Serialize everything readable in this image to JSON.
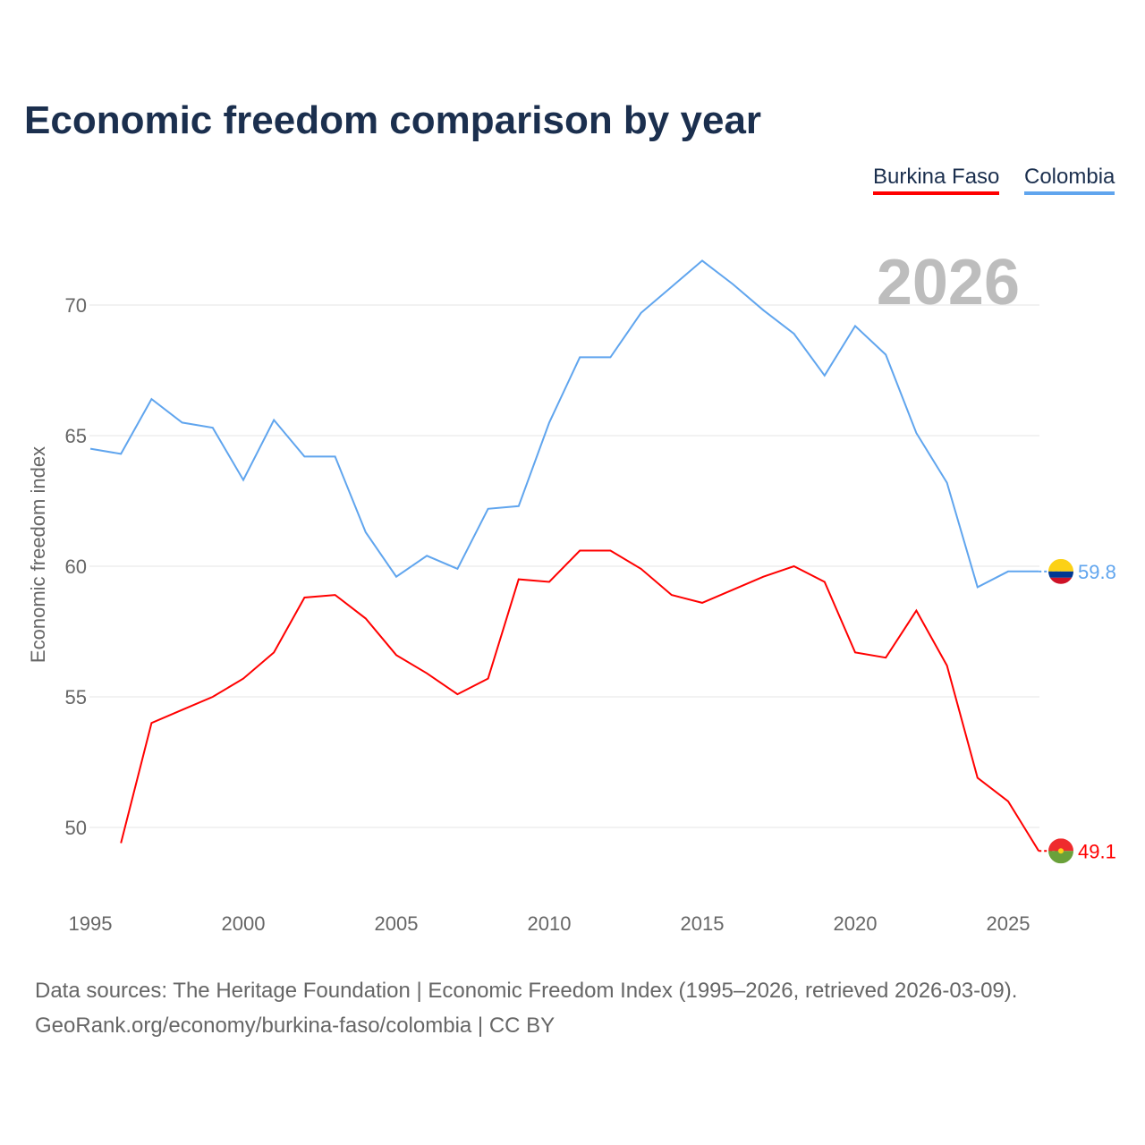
{
  "chart_data": {
    "type": "line",
    "title": "Economic freedom comparison by year",
    "xlabel": "",
    "ylabel": "Economic freedom index",
    "xlim": [
      1995,
      2026
    ],
    "ylim": [
      48,
      72.5
    ],
    "x_ticks": [
      "1995",
      "2000",
      "2005",
      "2010",
      "2015",
      "2020",
      "2025"
    ],
    "y_ticks": [
      "50",
      "55",
      "60",
      "65",
      "70"
    ],
    "grid": true,
    "legend_placement": "top-right",
    "year_label": "2026",
    "series": [
      {
        "name": "Burkina Faso",
        "color": "#ff0000",
        "end_label": "49.1",
        "x": [
          1996,
          1997,
          1998,
          1999,
          2000,
          2001,
          2002,
          2003,
          2004,
          2005,
          2006,
          2007,
          2008,
          2009,
          2010,
          2011,
          2012,
          2013,
          2014,
          2015,
          2016,
          2017,
          2018,
          2019,
          2020,
          2021,
          2022,
          2023,
          2024,
          2025,
          2026
        ],
        "values": [
          49.4,
          54.0,
          54.5,
          55.0,
          55.7,
          56.7,
          58.8,
          58.9,
          58.0,
          56.6,
          55.9,
          55.1,
          55.7,
          59.5,
          59.4,
          60.6,
          60.6,
          59.9,
          58.9,
          58.6,
          59.1,
          59.6,
          60.0,
          59.4,
          56.7,
          56.5,
          58.3,
          56.2,
          51.9,
          51.0,
          49.1
        ]
      },
      {
        "name": "Colombia",
        "color": "#60a5ee",
        "end_label": "59.8",
        "x": [
          1995,
          1996,
          1997,
          1998,
          1999,
          2000,
          2001,
          2002,
          2003,
          2004,
          2005,
          2006,
          2007,
          2008,
          2009,
          2010,
          2011,
          2012,
          2013,
          2014,
          2015,
          2016,
          2017,
          2018,
          2019,
          2020,
          2021,
          2022,
          2023,
          2024,
          2025,
          2026
        ],
        "values": [
          64.5,
          64.3,
          66.4,
          65.5,
          65.3,
          63.3,
          65.6,
          64.2,
          64.2,
          61.3,
          59.6,
          60.4,
          59.9,
          62.2,
          62.3,
          65.5,
          68.0,
          68.0,
          69.7,
          70.7,
          71.7,
          70.8,
          69.8,
          68.9,
          67.3,
          69.2,
          68.1,
          65.1,
          63.2,
          59.2,
          59.8,
          59.8
        ]
      }
    ]
  },
  "source": {
    "line1": "Data sources: The Heritage Foundation | Economic Freedom Index (1995–2026, retrieved 2026-03-09).",
    "line2": "GeoRank.org/economy/burkina-faso/colombia | CC BY"
  }
}
